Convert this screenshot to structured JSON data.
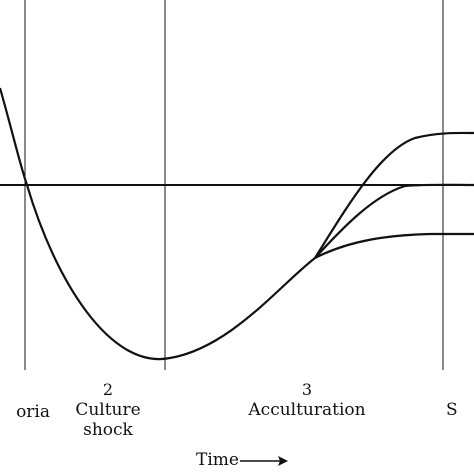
{
  "stages": [
    {
      "number": "",
      "name": "oria"
    },
    {
      "number": "2",
      "name": "Culture\nshock"
    },
    {
      "number": "3",
      "name": "Acculturation"
    },
    {
      "number": "",
      "name": "S"
    }
  ],
  "time_label": "Time",
  "colors": {
    "line": "#111111",
    "background": "#ffffff"
  }
}
